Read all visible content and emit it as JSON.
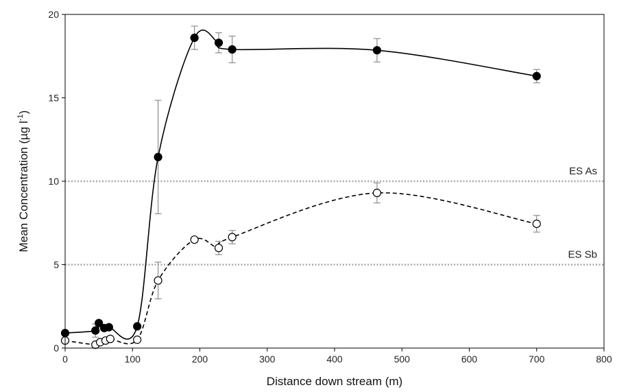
{
  "chart_data": {
    "type": "line",
    "title": "",
    "xlabel": "Distance down stream (m)",
    "ylabel_main": "Mean Concentration (µg l",
    "ylabel_sup": "-1",
    "ylabel_close": ")",
    "xlim": [
      0,
      800
    ],
    "ylim": [
      0,
      20
    ],
    "x_ticks": [
      "0",
      "100",
      "200",
      "300",
      "400",
      "500",
      "600",
      "700",
      "800"
    ],
    "y_ticks": [
      "0",
      "5",
      "10",
      "15",
      "20"
    ],
    "grid": false,
    "reference_lines": [
      {
        "label": "ES As",
        "y": 10,
        "color": "#a6a6a6"
      },
      {
        "label": "ES Sb",
        "y": 5,
        "color": "#a6a6a6"
      }
    ],
    "series": [
      {
        "marker": "filled-circle",
        "line": "solid",
        "color": "#000000",
        "points": [
          {
            "x": 0,
            "y": 0.9,
            "err": 0
          },
          {
            "x": 45,
            "y": 1.05,
            "err": 0.4
          },
          {
            "x": 50,
            "y": 1.5,
            "err": 0
          },
          {
            "x": 58,
            "y": 1.2,
            "err": 0
          },
          {
            "x": 65,
            "y": 1.25,
            "err": 0
          },
          {
            "x": 107,
            "y": 1.3,
            "err": 0
          },
          {
            "x": 138,
            "y": 11.45,
            "err": 3.4
          },
          {
            "x": 192,
            "y": 18.6,
            "err": 0.7
          },
          {
            "x": 228,
            "y": 18.3,
            "err": 0.6
          },
          {
            "x": 248,
            "y": 17.9,
            "err": 0.8
          },
          {
            "x": 463,
            "y": 17.85,
            "err": 0.7
          },
          {
            "x": 700,
            "y": 16.3,
            "err": 0.4
          }
        ]
      },
      {
        "marker": "open-circle",
        "line": "dashed",
        "color": "#000000",
        "points": [
          {
            "x": 0,
            "y": 0.45,
            "err": 0
          },
          {
            "x": 45,
            "y": 0.2,
            "err": 0
          },
          {
            "x": 52,
            "y": 0.35,
            "err": 0
          },
          {
            "x": 60,
            "y": 0.45,
            "err": 0
          },
          {
            "x": 67,
            "y": 0.55,
            "err": 0
          },
          {
            "x": 107,
            "y": 0.5,
            "err": 0
          },
          {
            "x": 138,
            "y": 4.05,
            "err": 1.1
          },
          {
            "x": 192,
            "y": 6.5,
            "err": 0
          },
          {
            "x": 228,
            "y": 6.0,
            "err": 0.4
          },
          {
            "x": 248,
            "y": 6.65,
            "err": 0.4
          },
          {
            "x": 463,
            "y": 9.3,
            "err": 0.6
          },
          {
            "x": 700,
            "y": 7.45,
            "err": 0.5
          }
        ]
      }
    ]
  }
}
